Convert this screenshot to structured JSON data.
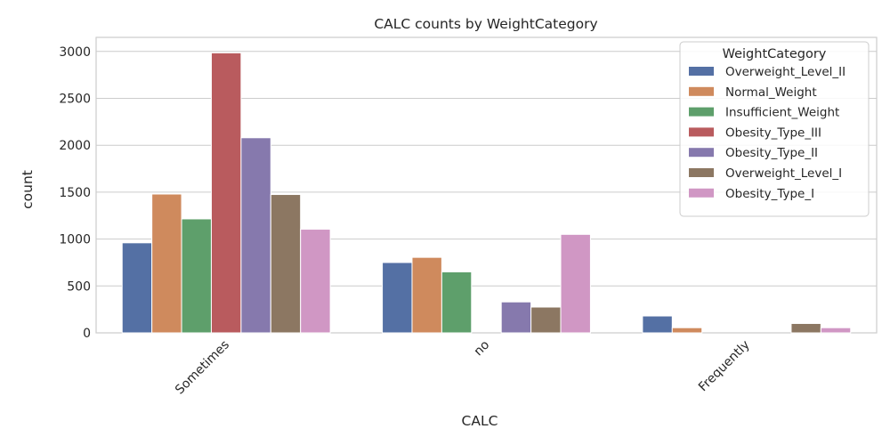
{
  "chart_data": {
    "type": "bar",
    "title": "CALC counts by WeightCategory",
    "xlabel": "CALC",
    "ylabel": "count",
    "categories": [
      "Sometimes",
      "no",
      "Frequently"
    ],
    "ylim": [
      0,
      3150
    ],
    "yticks": [
      0,
      500,
      1000,
      1500,
      2000,
      2500,
      3000
    ],
    "grid": true,
    "legend": {
      "title": "WeightCategory",
      "placement": "top-right"
    },
    "series": [
      {
        "name": "Overweight_Level_II",
        "color": "#5470a4",
        "values": [
          960,
          750,
          180
        ]
      },
      {
        "name": "Normal_Weight",
        "color": "#cf8a5d",
        "values": [
          1480,
          805,
          55
        ]
      },
      {
        "name": "Insufficient_Weight",
        "color": "#5e9f6b",
        "values": [
          1215,
          650,
          0
        ]
      },
      {
        "name": "Obesity_Type_III",
        "color": "#b95b5e",
        "values": [
          2985,
          0,
          0
        ]
      },
      {
        "name": "Obesity_Type_II",
        "color": "#8679ad",
        "values": [
          2080,
          330,
          0
        ]
      },
      {
        "name": "Overweight_Level_I",
        "color": "#8c7762",
        "values": [
          1475,
          275,
          100
        ]
      },
      {
        "name": "Obesity_Type_I",
        "color": "#d097c4",
        "values": [
          1105,
          1050,
          55
        ]
      }
    ]
  }
}
